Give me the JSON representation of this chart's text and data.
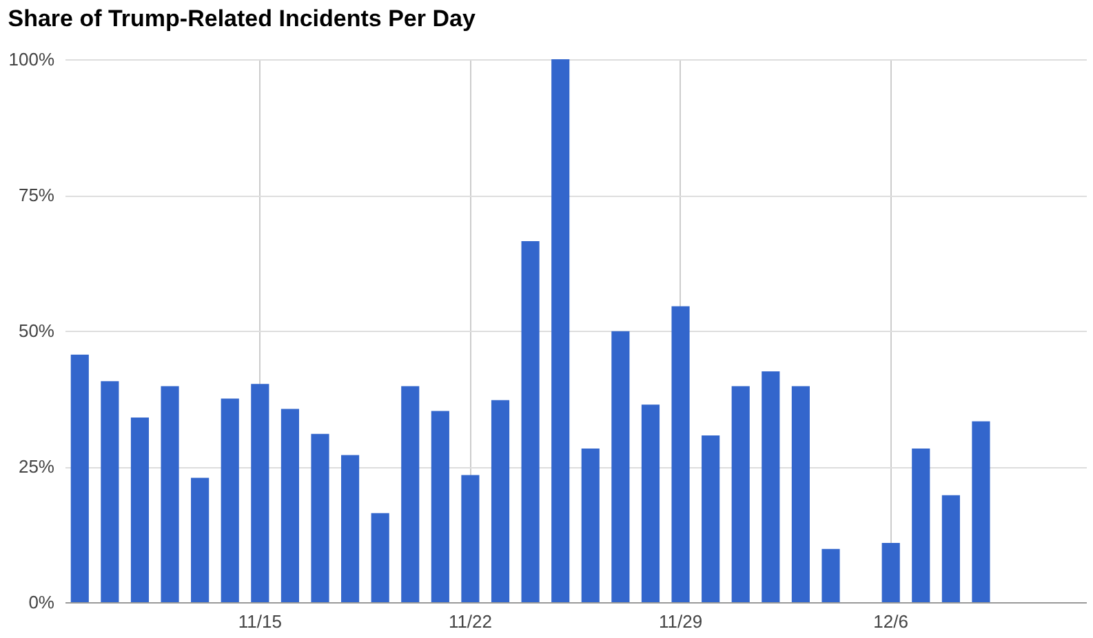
{
  "chart_data": {
    "type": "bar",
    "title": "Share of Trump-Related Incidents Per Day",
    "categories": [
      null,
      null,
      null,
      null,
      null,
      null,
      "11/15",
      null,
      null,
      null,
      null,
      null,
      null,
      "11/22",
      null,
      null,
      null,
      null,
      null,
      null,
      "11/29",
      null,
      null,
      null,
      null,
      null,
      null,
      "12/6",
      null,
      null,
      null,
      null,
      null,
      null
    ],
    "values": [
      45.6,
      40.7,
      34.0,
      39.8,
      22.9,
      37.5,
      40.2,
      35.6,
      31.0,
      27.1,
      16.4,
      39.8,
      35.2,
      23.4,
      37.2,
      66.5,
      100,
      28.3,
      49.9,
      36.4,
      54.5,
      30.7,
      39.8,
      42.5,
      39.8,
      9.8,
      0,
      10.9,
      28.3,
      19.7,
      33.3,
      0,
      0,
      0
    ],
    "color": "#3366cc",
    "ylim": [
      0,
      100
    ],
    "yticks": [
      {
        "value": 0,
        "label": "0%"
      },
      {
        "value": 25,
        "label": "25%"
      },
      {
        "value": 50,
        "label": "50%"
      },
      {
        "value": 75,
        "label": "75%"
      },
      {
        "value": 100,
        "label": "100%"
      }
    ],
    "grid": true
  }
}
